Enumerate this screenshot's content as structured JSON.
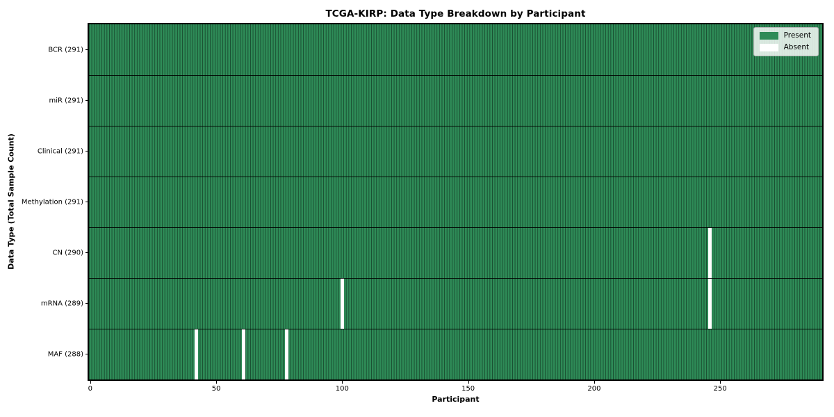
{
  "chart_data": {
    "type": "heatmap",
    "title": "TCGA-KIRP: Data Type Breakdown by Participant",
    "xlabel": "Participant",
    "ylabel": "Data Type (Total Sample Count)",
    "n_participants": 291,
    "x_axis_range": [
      -0.5,
      290.5
    ],
    "x_ticks": [
      0,
      50,
      100,
      150,
      200,
      250
    ],
    "grid": "per-cell vertical edges, black row separators",
    "rows": [
      {
        "label": "BCR (291)",
        "total_samples": 291,
        "absent_participants": []
      },
      {
        "label": "miR (291)",
        "total_samples": 291,
        "absent_participants": []
      },
      {
        "label": "Clinical (291)",
        "total_samples": 291,
        "absent_participants": []
      },
      {
        "label": "Methylation (291)",
        "total_samples": 291,
        "absent_participants": []
      },
      {
        "label": "CN (290)",
        "total_samples": 290,
        "absent_participants": [
          246
        ]
      },
      {
        "label": "mRNA (289)",
        "total_samples": 289,
        "absent_participants": [
          100,
          246
        ]
      },
      {
        "label": "MAF (288)",
        "total_samples": 288,
        "absent_participants": [
          42,
          61,
          78
        ]
      }
    ],
    "legend": {
      "position": "upper right",
      "items": [
        {
          "label": "Present",
          "color": "#2e8b57"
        },
        {
          "label": "Absent",
          "color": "#ffffff"
        }
      ]
    },
    "colors": {
      "present": "#2e8b57",
      "absent": "#ffffff",
      "cell_edge": "rgba(0,0,0,0.45)",
      "row_separator": "rgba(0,0,0,0.9)",
      "axis": "#000000"
    }
  }
}
